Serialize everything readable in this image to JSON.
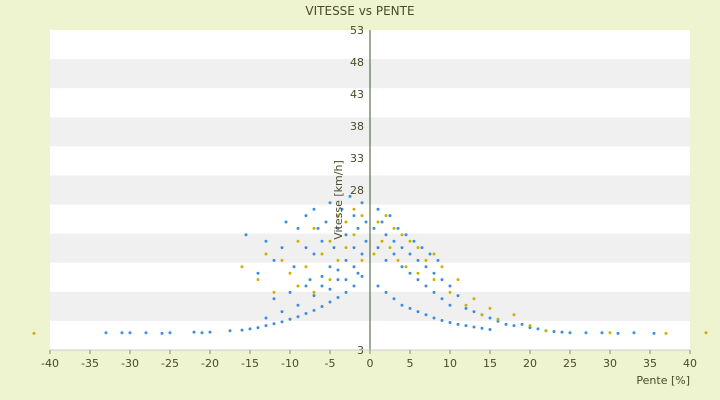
{
  "chart_data": {
    "type": "scatter",
    "title": "VITESSE vs PENTE",
    "xlabel": "Pente [%]",
    "ylabel": "Vitesse [km/h]",
    "xlim": [
      -40,
      40
    ],
    "ylim": [
      3,
      53
    ],
    "xticks": [
      "-40",
      "-35",
      "-30",
      "-25",
      "-20",
      "-15",
      "-10",
      "-5",
      "0",
      "5",
      "10",
      "15",
      "20",
      "25",
      "30",
      "35",
      "40"
    ],
    "yticks": [
      "53",
      "48",
      "43",
      "38",
      "33",
      "28",
      "3"
    ],
    "grid": "horizontal bands",
    "legend": "none",
    "colors": {
      "series_a": "#3E8EDE",
      "series_b": "#C8B400",
      "band": "#F0F0F0",
      "plot_bg": "#FFFFFF",
      "axis": "#3a5a2a"
    },
    "series": [
      {
        "color": "#3E8EDE",
        "points": [
          [
            -33,
            5.7
          ],
          [
            -31,
            5.7
          ],
          [
            -30,
            5.7
          ],
          [
            -28,
            5.7
          ],
          [
            -26,
            5.6
          ],
          [
            -25,
            5.7
          ],
          [
            -22,
            5.8
          ],
          [
            -21,
            5.7
          ],
          [
            -20,
            5.8
          ],
          [
            -17.5,
            6
          ],
          [
            -16,
            6.1
          ],
          [
            -15,
            6.3
          ],
          [
            -14,
            6.5
          ],
          [
            -13,
            6.8
          ],
          [
            -12,
            7.1
          ],
          [
            -11,
            7.4
          ],
          [
            -10,
            7.8
          ],
          [
            -9,
            8.2
          ],
          [
            -8,
            8.7
          ],
          [
            -7,
            9.2
          ],
          [
            -6,
            9.8
          ],
          [
            -5,
            10.5
          ],
          [
            -4,
            11.2
          ],
          [
            -3,
            12
          ],
          [
            -2,
            13
          ],
          [
            -1,
            14.5
          ],
          [
            -15.5,
            21
          ],
          [
            -13,
            20
          ],
          [
            -12,
            17
          ],
          [
            -14,
            15
          ],
          [
            -11,
            19
          ],
          [
            -10.5,
            23
          ],
          [
            -9,
            22
          ],
          [
            -9.5,
            16
          ],
          [
            -8,
            24
          ],
          [
            -8,
            19
          ],
          [
            -7.5,
            14
          ],
          [
            -7,
            25
          ],
          [
            -7,
            18
          ],
          [
            -6.5,
            22
          ],
          [
            -6,
            13
          ],
          [
            -6,
            20
          ],
          [
            -5.5,
            23
          ],
          [
            -5,
            16
          ],
          [
            -5,
            26
          ],
          [
            -4.5,
            19
          ],
          [
            -4,
            22
          ],
          [
            -4,
            14
          ],
          [
            -3.5,
            25
          ],
          [
            -3,
            17
          ],
          [
            -3,
            21
          ],
          [
            -2.5,
            27
          ],
          [
            -2,
            19
          ],
          [
            -2,
            24
          ],
          [
            -1.5,
            15
          ],
          [
            -1.5,
            22
          ],
          [
            -1,
            26
          ],
          [
            -1,
            18
          ],
          [
            -0.5,
            23
          ],
          [
            -0.5,
            20
          ],
          [
            -10,
            12
          ],
          [
            -12,
            11
          ],
          [
            -8,
            13
          ],
          [
            -6,
            14.5
          ],
          [
            -9,
            10
          ],
          [
            -11,
            9
          ],
          [
            -13,
            8
          ],
          [
            -7,
            11.5
          ],
          [
            -5,
            12.5
          ],
          [
            -4,
            15.5
          ],
          [
            -3,
            14
          ],
          [
            -2,
            16
          ],
          [
            0.5,
            22
          ],
          [
            1,
            25
          ],
          [
            1,
            19
          ],
          [
            1.5,
            23
          ],
          [
            2,
            21
          ],
          [
            2,
            17
          ],
          [
            2.5,
            24
          ],
          [
            3,
            18
          ],
          [
            3,
            20
          ],
          [
            3.5,
            22
          ],
          [
            4,
            16
          ],
          [
            4,
            19
          ],
          [
            4.5,
            21
          ],
          [
            5,
            15
          ],
          [
            5,
            18
          ],
          [
            5.5,
            20
          ],
          [
            6,
            14
          ],
          [
            6,
            17
          ],
          [
            6.5,
            19
          ],
          [
            7,
            13
          ],
          [
            7,
            16
          ],
          [
            7.5,
            18
          ],
          [
            8,
            12
          ],
          [
            8,
            15
          ],
          [
            8.5,
            17
          ],
          [
            9,
            11
          ],
          [
            9,
            14
          ],
          [
            10,
            10
          ],
          [
            10,
            13
          ],
          [
            11,
            11.5
          ],
          [
            12,
            9.5
          ],
          [
            13,
            9
          ],
          [
            14,
            8.5
          ],
          [
            15,
            8
          ],
          [
            16,
            7.5
          ],
          [
            17,
            7
          ],
          [
            18,
            6.8
          ],
          [
            19,
            7
          ],
          [
            20,
            6.5
          ],
          [
            21,
            6.3
          ],
          [
            22,
            6
          ],
          [
            23,
            5.9
          ],
          [
            24,
            5.8
          ],
          [
            1,
            13
          ],
          [
            2,
            12
          ],
          [
            3,
            11
          ],
          [
            4,
            10
          ],
          [
            5,
            9.5
          ],
          [
            6,
            9
          ],
          [
            7,
            8.5
          ],
          [
            8,
            8
          ],
          [
            9,
            7.6
          ],
          [
            10,
            7.3
          ],
          [
            11,
            7
          ],
          [
            12,
            6.8
          ],
          [
            13,
            6.6
          ],
          [
            14,
            6.4
          ],
          [
            15,
            6.2
          ],
          [
            25,
            5.7
          ],
          [
            27,
            5.7
          ],
          [
            29,
            5.7
          ],
          [
            31,
            5.6
          ],
          [
            33,
            5.7
          ],
          [
            35.5,
            5.6
          ]
        ]
      },
      {
        "color": "#C8B400",
        "points": [
          [
            -42,
            5.6
          ],
          [
            -16,
            16
          ],
          [
            -14,
            14
          ],
          [
            -13,
            18
          ],
          [
            -12,
            12
          ],
          [
            -11,
            17
          ],
          [
            -10,
            15
          ],
          [
            -9,
            13
          ],
          [
            -9,
            20
          ],
          [
            -8,
            16
          ],
          [
            -7,
            22
          ],
          [
            -7,
            12
          ],
          [
            -6,
            18
          ],
          [
            -5,
            20
          ],
          [
            -5,
            14
          ],
          [
            -4,
            24
          ],
          [
            -4,
            17
          ],
          [
            -3,
            19
          ],
          [
            -3,
            23
          ],
          [
            -2,
            21
          ],
          [
            -2,
            25
          ],
          [
            -1,
            17
          ],
          [
            -1,
            24
          ],
          [
            0.5,
            18
          ],
          [
            1,
            23
          ],
          [
            1.5,
            20
          ],
          [
            2,
            24
          ],
          [
            2.5,
            19
          ],
          [
            3,
            22
          ],
          [
            3.5,
            17
          ],
          [
            4,
            21
          ],
          [
            4.5,
            16
          ],
          [
            5,
            20
          ],
          [
            6,
            15
          ],
          [
            6,
            19
          ],
          [
            7,
            17
          ],
          [
            8,
            14
          ],
          [
            8,
            18
          ],
          [
            9,
            16
          ],
          [
            10,
            12
          ],
          [
            11,
            14
          ],
          [
            12,
            10
          ],
          [
            13,
            11
          ],
          [
            14,
            8.5
          ],
          [
            15,
            9.5
          ],
          [
            16,
            7.8
          ],
          [
            18,
            8.5
          ],
          [
            20,
            6.8
          ],
          [
            22,
            6
          ],
          [
            30,
            5.7
          ],
          [
            37,
            5.6
          ],
          [
            42,
            5.7
          ]
        ]
      }
    ]
  }
}
